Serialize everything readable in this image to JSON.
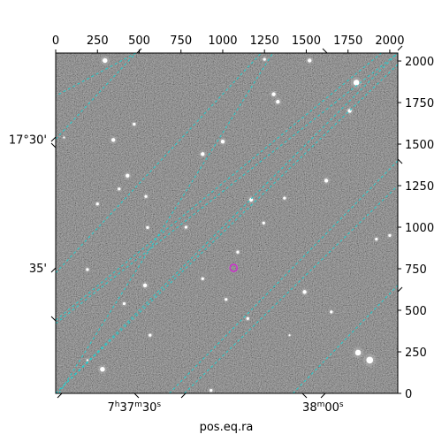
{
  "chart_data": {
    "type": "scatter",
    "title": "",
    "xlabel": "pos.eq.ra",
    "ylabel": "",
    "pixel_axes": {
      "xlim": [
        0,
        2048
      ],
      "ylim": [
        0,
        2048
      ],
      "top_ticks": [
        "0",
        "250",
        "500",
        "750",
        "1000",
        "1250",
        "1500",
        "1750",
        "2000"
      ],
      "top_tick_values": [
        0,
        250,
        500,
        750,
        1000,
        1250,
        1500,
        1750,
        2000
      ],
      "right_ticks": [
        "0",
        "250",
        "500",
        "750",
        "1000",
        "1250",
        "1500",
        "1750",
        "2000"
      ],
      "right_tick_values": [
        0,
        250,
        500,
        750,
        1000,
        1250,
        1500,
        1750,
        2000
      ]
    },
    "world_axes": {
      "ra_labels": [
        {
          "h": "7",
          "m": "37",
          "s": "30",
          "x_pix": 470
        },
        {
          "h": "",
          "m": "38",
          "s": "00",
          "x_pix": 1600
        }
      ],
      "dec_labels": [
        {
          "text": "17°30'",
          "y_pix": 1525
        },
        {
          "text": "35'",
          "y_pix": 750
        }
      ]
    },
    "grid": true,
    "grid_color": "#20d0d0",
    "grid_lines": [
      [
        [
          0,
          1530
        ],
        [
          480,
          2048
        ]
      ],
      [
        [
          0,
          725
        ],
        [
          1230,
          2048
        ]
      ],
      [
        [
          0,
          440
        ],
        [
          1950,
          2048
        ]
      ],
      [
        [
          0,
          0
        ],
        [
          2048,
          2048
        ]
      ],
      [
        [
          680,
          0
        ],
        [
          2048,
          1400
        ]
      ],
      [
        [
          1420,
          0
        ],
        [
          2048,
          650
        ]
      ],
      [
        [
          0,
          0
        ],
        [
          150,
          0
        ]
      ],
      [
        [
          480,
          2048
        ],
        [
          0,
          1790
        ]
      ],
      [
        [
          0,
          0
        ],
        [
          2048,
          1980
        ]
      ],
      [
        [
          770,
          0
        ],
        [
          2048,
          1250
        ]
      ],
      [
        [
          20,
          0
        ],
        [
          1300,
          2048
        ]
      ],
      [
        [
          0,
          420
        ],
        [
          2048,
          2048
        ]
      ]
    ],
    "stars": [
      [
        295,
        2003,
        5
      ],
      [
        1520,
        2003,
        4
      ],
      [
        1800,
        1870,
        6
      ],
      [
        1305,
        1800,
        4
      ],
      [
        1760,
        1700,
        4
      ],
      [
        470,
        1620,
        3
      ],
      [
        345,
        1525,
        4
      ],
      [
        1000,
        1515,
        4
      ],
      [
        880,
        1440,
        4
      ],
      [
        430,
        1310,
        4
      ],
      [
        1620,
        1280,
        4
      ],
      [
        1170,
        1165,
        4
      ],
      [
        380,
        1230,
        3
      ],
      [
        250,
        1140,
        3
      ],
      [
        540,
        1185,
        3
      ],
      [
        1370,
        1175,
        3
      ],
      [
        1245,
        1025,
        3
      ],
      [
        780,
        1000,
        3
      ],
      [
        550,
        998,
        3
      ],
      [
        1920,
        928,
        3
      ],
      [
        1090,
        850,
        3
      ],
      [
        190,
        745,
        3
      ],
      [
        535,
        650,
        4
      ],
      [
        880,
        690,
        3
      ],
      [
        1490,
        610,
        4
      ],
      [
        1020,
        565,
        3
      ],
      [
        410,
        540,
        3
      ],
      [
        1650,
        490,
        3
      ],
      [
        565,
        350,
        3
      ],
      [
        1810,
        245,
        6
      ],
      [
        1880,
        200,
        7
      ],
      [
        280,
        145,
        5
      ],
      [
        930,
        18,
        3
      ],
      [
        190,
        200,
        2
      ],
      [
        1250,
        2010,
        3
      ],
      [
        1330,
        1755,
        4
      ],
      [
        1150,
        450,
        3
      ],
      [
        2000,
        950,
        3
      ],
      [
        1400,
        350,
        2
      ],
      [
        50,
        1540,
        2
      ]
    ],
    "markers": [
      {
        "x": 1065,
        "y": 755,
        "color": "#cc33cc"
      }
    ]
  }
}
